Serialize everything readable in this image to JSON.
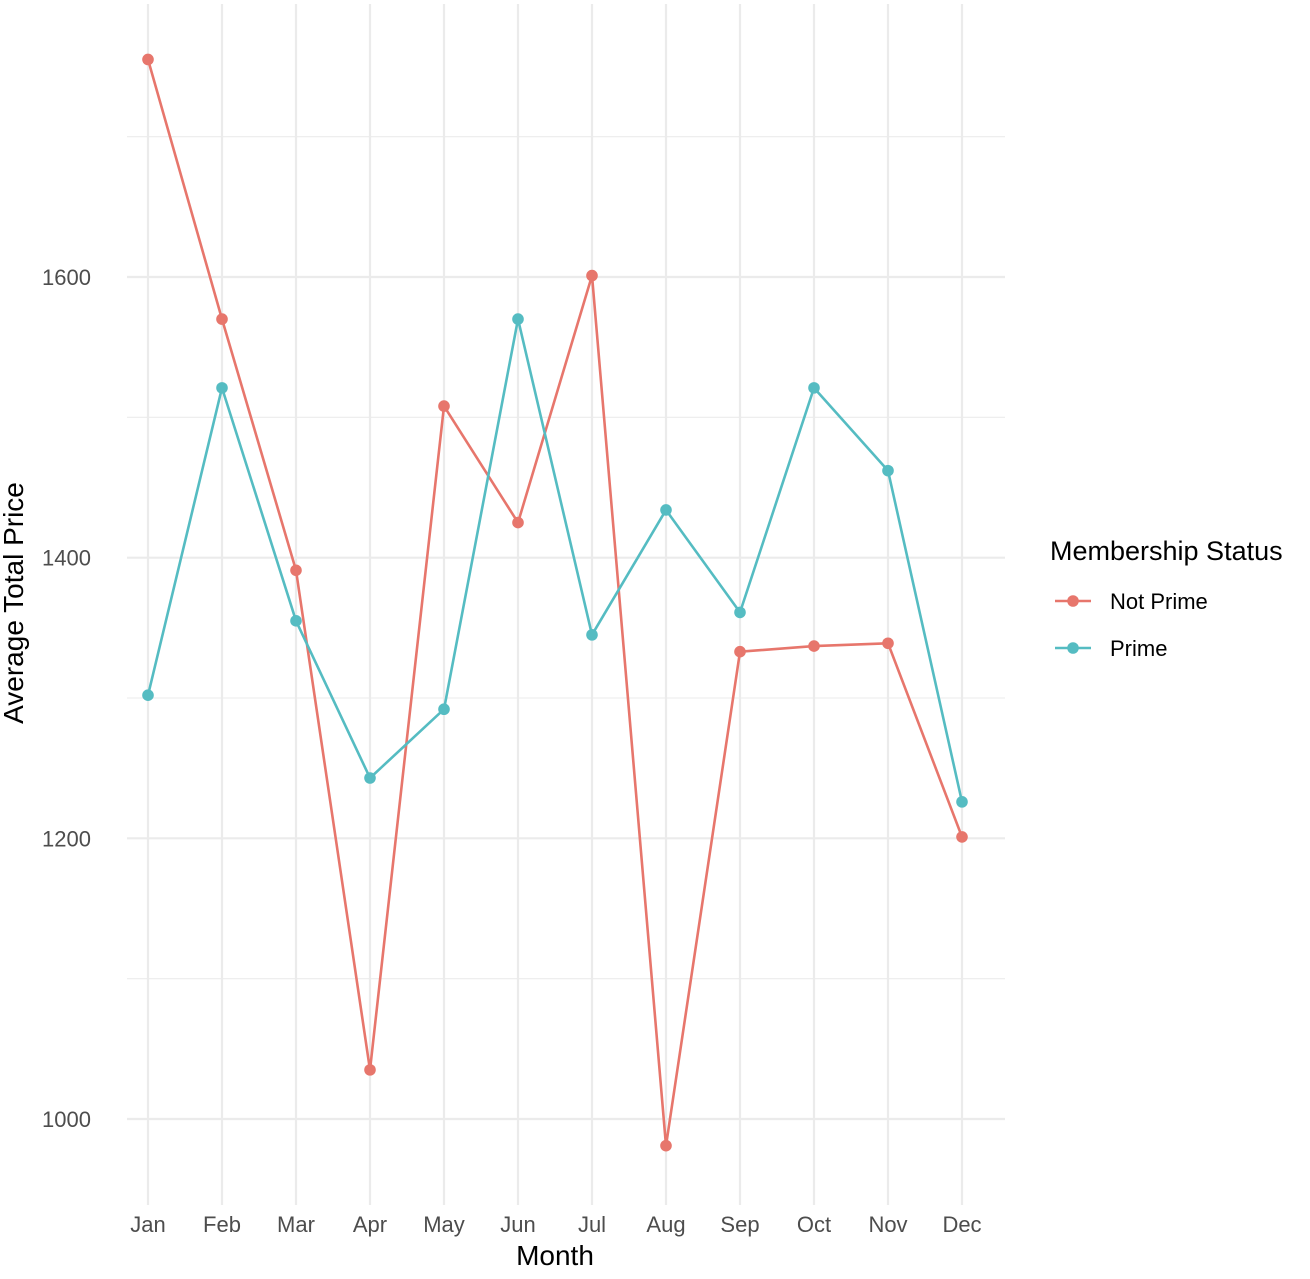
{
  "chart_data": {
    "type": "line",
    "xlabel": "Month",
    "ylabel": "Average Total Price",
    "categories": [
      "Jan",
      "Feb",
      "Mar",
      "Apr",
      "May",
      "Jun",
      "Jul",
      "Aug",
      "Sep",
      "Oct",
      "Nov",
      "Dec"
    ],
    "ylim": [
      941,
      1762
    ],
    "yticks": [
      1000,
      1200,
      1400,
      1600
    ],
    "ytick_labels": [
      "1000",
      "1200",
      "1400",
      "1600"
    ],
    "grid": true,
    "legend": {
      "title": "Membership Status",
      "position": "right"
    },
    "series": [
      {
        "name": "Not Prime",
        "color": "#E7766C",
        "values": [
          1755,
          1570,
          1391,
          1035,
          1508,
          1425,
          1601,
          981,
          1333,
          1337,
          1339,
          1201
        ]
      },
      {
        "name": "Prime",
        "color": "#55BCC2",
        "values": [
          1302,
          1521,
          1355,
          1243,
          1292,
          1570,
          1345,
          1434,
          1361,
          1521,
          1462,
          1226
        ]
      }
    ]
  }
}
